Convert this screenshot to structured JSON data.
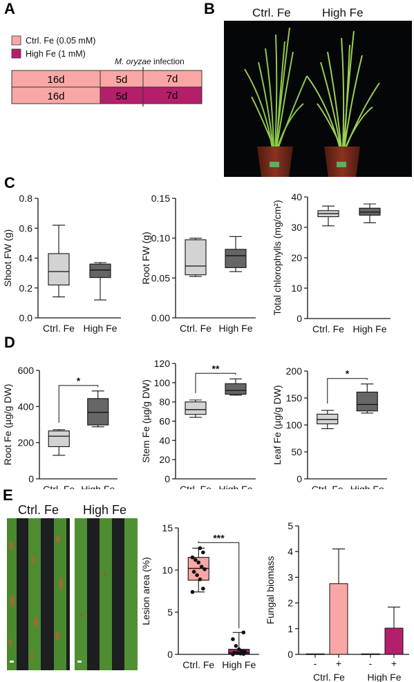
{
  "panel_labels": {
    "A": "A",
    "B": "B",
    "C": "C",
    "D": "D",
    "E": "E"
  },
  "timeline": {
    "legend": [
      {
        "label": "Ctrl. Fe (0.05 mM)",
        "color": "#f9a7a6"
      },
      {
        "label": "High Fe (1 mM)",
        "color": "#b41f6c"
      }
    ],
    "infection_label_italic": "M. oryzae",
    "infection_label_rest": " infection",
    "rows": [
      {
        "segments": [
          {
            "label": "16d",
            "color": "#f9a7a6"
          },
          {
            "label": "5d",
            "color": "#f9a7a6"
          },
          {
            "label": "7d",
            "color": "#f9a7a6"
          }
        ]
      },
      {
        "segments": [
          {
            "label": "16d",
            "color": "#f9a7a6"
          },
          {
            "label": "5d",
            "color": "#b41f6c"
          },
          {
            "label": "7d",
            "color": "#b41f6c"
          }
        ]
      }
    ]
  },
  "photo_b": {
    "titles": [
      "Ctrl. Fe",
      "High Fe"
    ],
    "pot_color": "#7a2a1a",
    "plant_color": "#8ec84a"
  },
  "photo_e": {
    "titles": [
      "Ctrl. Fe",
      "High Fe"
    ],
    "leaf_color": "#4d8a2f"
  },
  "colors": {
    "ctrl_box": "#d3d3d3",
    "high_box": "#666666",
    "ctrl_pink": "#f9a7a6",
    "high_magenta": "#b41f6c"
  },
  "chart_data": [
    {
      "id": "shoot_fw",
      "type": "box",
      "ylabel": "Shoot FW (g)",
      "ylim": [
        0.0,
        0.8
      ],
      "yticks": [
        "0.0",
        "0.2",
        "0.4",
        "0.6",
        "0.8"
      ],
      "categories": [
        "Ctrl. Fe",
        "High Fe"
      ],
      "boxes": [
        {
          "min": 0.14,
          "q1": 0.22,
          "median": 0.31,
          "q3": 0.43,
          "max": 0.62,
          "color": "#d3d3d3"
        },
        {
          "min": 0.12,
          "q1": 0.27,
          "median": 0.32,
          "q3": 0.36,
          "max": 0.37,
          "color": "#666666"
        }
      ]
    },
    {
      "id": "root_fw",
      "type": "box",
      "ylabel": "Root FW (g)",
      "ylim": [
        0.0,
        0.15
      ],
      "yticks": [
        "0.00",
        "0.05",
        "0.10",
        "0.15"
      ],
      "categories": [
        "Ctrl. Fe",
        "High Fe"
      ],
      "boxes": [
        {
          "min": 0.052,
          "q1": 0.054,
          "median": 0.065,
          "q3": 0.098,
          "max": 0.1,
          "color": "#d3d3d3"
        },
        {
          "min": 0.058,
          "q1": 0.063,
          "median": 0.078,
          "q3": 0.086,
          "max": 0.102,
          "color": "#666666"
        }
      ]
    },
    {
      "id": "chlorophyll",
      "type": "box",
      "ylabel": "Total chlorophylls (mg/cm²)",
      "ylim": [
        0,
        40
      ],
      "yticks": [
        "0",
        "10",
        "20",
        "30",
        "40"
      ],
      "categories": [
        "Ctrl. Fe",
        "High Fe"
      ],
      "boxes": [
        {
          "min": 30.5,
          "q1": 33.5,
          "median": 34.5,
          "q3": 35.5,
          "max": 37,
          "color": "#d3d3d3"
        },
        {
          "min": 31.5,
          "q1": 34.0,
          "median": 35.0,
          "q3": 36.3,
          "max": 37.7,
          "color": "#666666"
        }
      ]
    },
    {
      "id": "root_fe",
      "type": "box",
      "ylabel": "Root Fe (µg/g DW)",
      "ylim": [
        0,
        600
      ],
      "yticks": [
        "0",
        "200",
        "400",
        "600"
      ],
      "categories": [
        "Ctrl. Fe",
        "High Fe"
      ],
      "significance": "*",
      "boxes": [
        {
          "min": 130,
          "q1": 178,
          "median": 236,
          "q3": 265,
          "max": 272,
          "color": "#d3d3d3"
        },
        {
          "min": 288,
          "q1": 298,
          "median": 368,
          "q3": 444,
          "max": 486,
          "color": "#666666"
        }
      ]
    },
    {
      "id": "stem_fe",
      "type": "box",
      "ylabel": "Stem Fe (µg/g DW)",
      "ylim": [
        0,
        120
      ],
      "yticks": [
        "0",
        "20",
        "40",
        "60",
        "80",
        "100",
        "120"
      ],
      "categories": [
        "Ctrl. Fe",
        "High Fe"
      ],
      "significance": "**",
      "boxes": [
        {
          "min": 64,
          "q1": 67,
          "median": 72,
          "q3": 80,
          "max": 82,
          "color": "#d3d3d3"
        },
        {
          "min": 87,
          "q1": 88,
          "median": 92,
          "q3": 99,
          "max": 104,
          "color": "#666666"
        }
      ]
    },
    {
      "id": "leaf_fe",
      "type": "box",
      "ylabel": "Leaf Fe (µg/g DW)",
      "ylim": [
        0,
        200
      ],
      "yticks": [
        "0",
        "50",
        "100",
        "150",
        "200"
      ],
      "categories": [
        "Ctrl. Fe",
        "High Fe"
      ],
      "significance": "*",
      "boxes": [
        {
          "min": 93,
          "q1": 102,
          "median": 110,
          "q3": 120,
          "max": 127,
          "color": "#d3d3d3"
        },
        {
          "min": 122,
          "q1": 126,
          "median": 138,
          "q3": 161,
          "max": 176,
          "color": "#666666"
        }
      ]
    },
    {
      "id": "lesion_area",
      "type": "box",
      "ylabel": "Lesion area (%)",
      "ylim": [
        0,
        15
      ],
      "yticks": [
        "0",
        "5",
        "10",
        "15"
      ],
      "categories": [
        "Ctrl. Fe",
        "High Fe"
      ],
      "significance": "***",
      "boxes": [
        {
          "min": 7.4,
          "q1": 8.8,
          "median": 10.2,
          "q3": 11.5,
          "max": 12.6,
          "color": "#f9a7a6",
          "points": [
            7.4,
            7.8,
            8.9,
            9.4,
            9.8,
            10.1,
            10.4,
            10.9,
            11.2,
            11.5,
            12.1,
            12.6
          ]
        },
        {
          "min": 0.0,
          "q1": 0.05,
          "median": 0.2,
          "q3": 0.6,
          "max": 2.6,
          "color": "#b41f6c",
          "points": [
            0.0,
            0.05,
            0.1,
            0.15,
            0.2,
            0.3,
            0.4,
            0.6,
            1.0,
            1.8,
            2.6
          ]
        }
      ]
    },
    {
      "id": "fungal_biomass",
      "type": "bar",
      "ylabel": "Fungal biomass",
      "ylim": [
        0,
        5
      ],
      "yticks": [
        "0",
        "1",
        "2",
        "3",
        "4",
        "5"
      ],
      "groups": [
        "Ctrl. Fe",
        "High Fe"
      ],
      "subcategories": [
        "-",
        "+"
      ],
      "bars": [
        {
          "group": "Ctrl. Fe",
          "sub": "-",
          "value": 0.02,
          "error": 0,
          "color": "#f9a7a6"
        },
        {
          "group": "Ctrl. Fe",
          "sub": "+",
          "value": 2.75,
          "error": 1.35,
          "color": "#f9a7a6"
        },
        {
          "group": "High Fe",
          "sub": "-",
          "value": 0.02,
          "error": 0,
          "color": "#b41f6c"
        },
        {
          "group": "High Fe",
          "sub": "+",
          "value": 1.02,
          "error": 0.82,
          "color": "#b41f6c"
        }
      ]
    }
  ]
}
